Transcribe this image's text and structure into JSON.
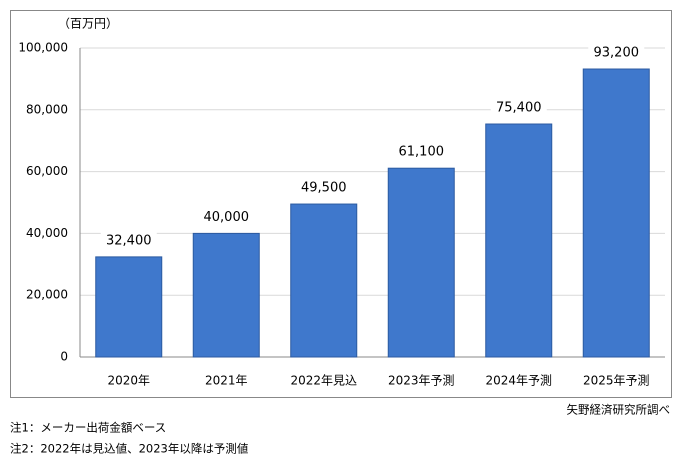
{
  "chart_data": {
    "type": "bar",
    "y_unit": "（百万円）",
    "categories": [
      "2020年",
      "2021年",
      "2022年見込",
      "2023年予測",
      "2024年予測",
      "2025年予測"
    ],
    "values": [
      32400,
      40000,
      49500,
      61100,
      75400,
      93200
    ],
    "value_labels": [
      "32,400",
      "40,000",
      "49,500",
      "61,100",
      "75,400",
      "93,200"
    ],
    "color": "#3f78cc",
    "ylim": [
      0,
      100000
    ],
    "yticks": [
      0,
      {
        "value": 20000,
        "label": "20,000"
      },
      {
        "value": 40000,
        "label": "40,000"
      },
      {
        "value": 60000,
        "label": "60,000"
      },
      {
        "value": 80000,
        "label": "80,000"
      },
      {
        "value": 100000,
        "label": "100,000"
      }
    ],
    "grid": true,
    "source": "矢野経済研究所調べ",
    "notes": [
      "注1：メーカー出荷金額ベース",
      "注2：2022年は見込値、2023年以降は予測値"
    ]
  }
}
